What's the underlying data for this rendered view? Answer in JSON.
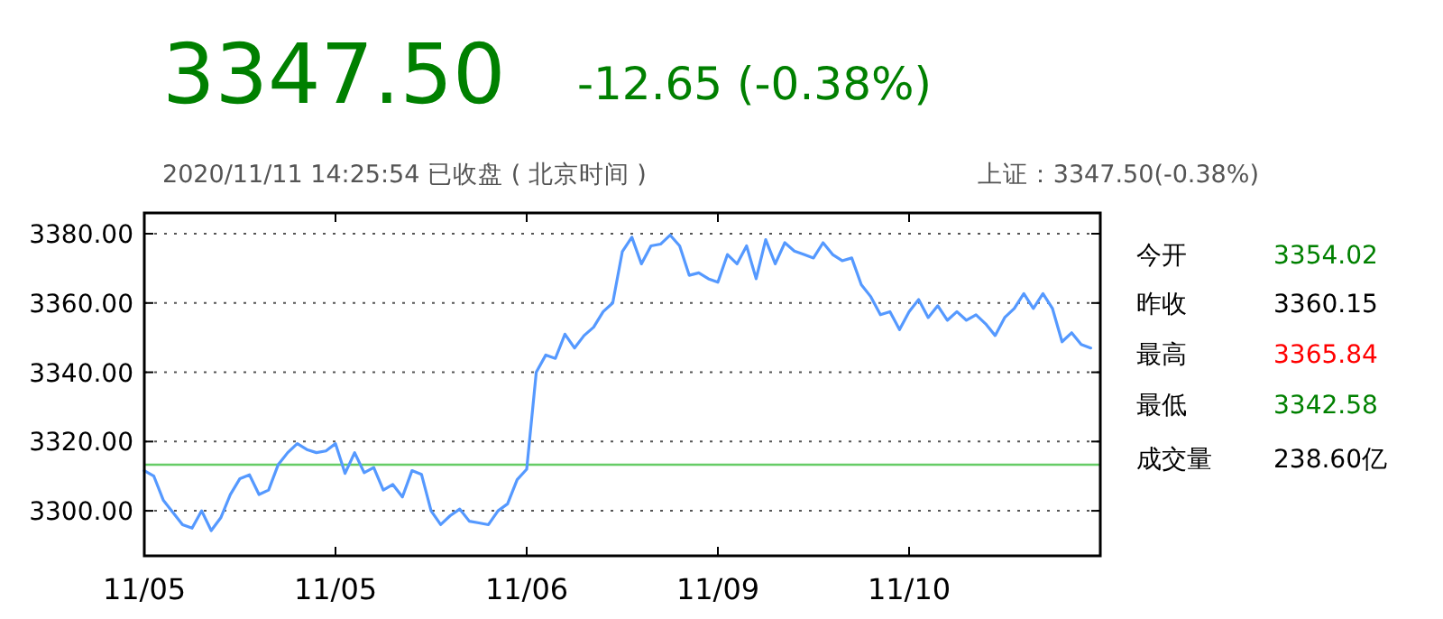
{
  "chart_data": [
    {
      "type": "line",
      "title": "3347.50",
      "subtitle": "-12.65 (-0.38%)",
      "annotations": [
        "2020/11/11 14:25:54 已收盘 ( 北京时间 )",
        "上证：3347.50(-0.38%)"
      ],
      "categories": [
        "11/05",
        null,
        null,
        null,
        null,
        null,
        null,
        null,
        null,
        null,
        null,
        null,
        null,
        null,
        null,
        null,
        null,
        null,
        null,
        null,
        "11/05",
        null,
        null,
        null,
        null,
        null,
        null,
        null,
        null,
        null,
        null,
        null,
        null,
        null,
        null,
        null,
        null,
        null,
        null,
        null,
        "11/06",
        null,
        null,
        null,
        null,
        null,
        null,
        null,
        null,
        null,
        null,
        null,
        null,
        null,
        null,
        null,
        null,
        null,
        null,
        null,
        "11/09",
        null,
        null,
        null,
        null,
        null,
        null,
        null,
        null,
        null,
        null,
        null,
        null,
        null,
        null,
        null,
        null,
        null,
        null,
        null,
        "11/10",
        null,
        null,
        null,
        null,
        null,
        null,
        null,
        null,
        null,
        null,
        null,
        null,
        null,
        null,
        null,
        null,
        null,
        null,
        null
      ],
      "series": [
        {
          "color": "#5599ff",
          "values": [
            3311.6,
            3310,
            3303,
            3299.5,
            3296,
            3295,
            3300,
            3294.3,
            3298,
            3304.7,
            3309.3,
            3310.4,
            3304.7,
            3306,
            3313.3,
            3316.8,
            3319.4,
            3317.7,
            3316.8,
            3317.3,
            3319.4,
            3310.8,
            3316.8,
            3311,
            3312.5,
            3306,
            3307.6,
            3304,
            3311.6,
            3310.5,
            3300,
            3296,
            3298.6,
            3300.5,
            3297,
            3296.5,
            3296,
            3300,
            3302,
            3309,
            3312,
            3340,
            3345,
            3344,
            3351,
            3347,
            3350.6,
            3353,
            3357.5,
            3360,
            3374.8,
            3379,
            3371.3,
            3376.5,
            3377,
            3379.6,
            3376.5,
            3368,
            3368.7,
            3367,
            3366,
            3374,
            3371.3,
            3376.5,
            3367,
            3378.3,
            3371.3,
            3377.4,
            3375,
            3374,
            3373,
            3377.4,
            3374,
            3372.2,
            3373,
            3365.3,
            3361.8,
            3356.6,
            3357.5,
            3352.3,
            3357.5,
            3361,
            3355.8,
            3359.2,
            3355,
            3357.5,
            3355,
            3356.6,
            3354,
            3350.6,
            3355.8,
            3358.4,
            3362.7,
            3358.4,
            3362.7,
            3358.4,
            3348.8,
            3351.4,
            3348,
            3347
          ]
        }
      ],
      "ylim": [
        3287,
        3386
      ],
      "yticks": [
        {
          "value": 3300,
          "label": "3300.00"
        },
        {
          "value": 3320,
          "label": "3320.00"
        },
        {
          "value": 3340,
          "label": "3340.00"
        },
        {
          "value": 3360,
          "label": "3360.00"
        },
        {
          "value": 3380,
          "label": "3380.00"
        }
      ],
      "ref_lines": [
        {
          "axis": "y",
          "value": 3313.3,
          "color": "#66cc66"
        }
      ],
      "grid": "y",
      "marker": "none",
      "line_style": "solid"
    },
    {
      "type": "other",
      "categories": [
        "今开",
        "昨收",
        "最高",
        "最低",
        "成交量"
      ],
      "value_labels": [
        "3354.02",
        "3360.15",
        "3365.84",
        "3342.58",
        "238.60亿"
      ],
      "colors": [
        "#008000",
        "#000000",
        "#ff0000",
        "#008000",
        "#000000"
      ]
    }
  ]
}
